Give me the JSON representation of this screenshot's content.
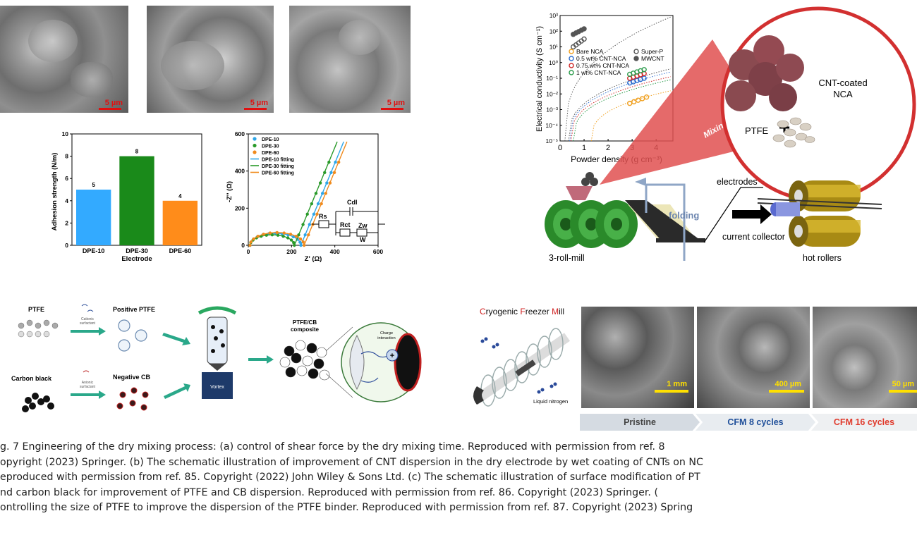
{
  "panel_a": {
    "sem_scale": [
      "5 µm",
      "5 µm",
      "5 µm"
    ],
    "adhesion_chart": {
      "type": "bar",
      "ylabel": "Adhesion strength (N/m)",
      "xlabel": "Electrode",
      "categories": [
        "DPE-10",
        "DPE-30",
        "DPE-60"
      ],
      "values": [
        5,
        8,
        4
      ],
      "data_labels": [
        "5",
        "8",
        "4"
      ],
      "colors": [
        "#33aaff",
        "#1a8a1a",
        "#ff8c1a"
      ],
      "ylim": [
        0,
        10
      ],
      "yticks": [
        "0",
        "2",
        "4",
        "6",
        "8",
        "10"
      ]
    },
    "eis_chart": {
      "type": "scatter",
      "xlabel": "Z' (Ω)",
      "ylabel": "-Z'' (Ω)",
      "xlim": [
        0,
        600
      ],
      "ylim": [
        0,
        600
      ],
      "xticks": [
        "0",
        "200",
        "400",
        "600"
      ],
      "yticks": [
        "0",
        "200",
        "400",
        "600"
      ],
      "legend": [
        "DPE-10",
        "DPE-30",
        "DPE-60",
        "DPE-10 fitting",
        "DPE-30 fitting",
        "DPE-60 fitting"
      ],
      "colors": [
        "#2ea6e8",
        "#2a9a2a",
        "#f08a1c"
      ],
      "circuit_labels": [
        "Rs",
        "Rct",
        "Cdl",
        "Zw",
        "W"
      ]
    }
  },
  "panel_b": {
    "conductivity_chart": {
      "type": "scatter",
      "xlabel": "Powder density (g cm⁻³)",
      "ylabel": "Electrical conductivity (S cm⁻¹)",
      "xticks": [
        "0",
        "1",
        "2",
        "3",
        "4"
      ],
      "yticks": [
        "10⁻⁵",
        "10⁻⁴",
        "10⁻³",
        "10⁻²",
        "10⁻¹",
        "10⁰",
        "10¹",
        "10²",
        "10³"
      ],
      "legend_left": [
        "Bare NCA",
        "0.5 wt% CNT-NCA",
        "0.75 wt% CNT-NCA",
        "1 wt% CNT-NCA"
      ],
      "legend_right": [
        "Super-P",
        "MWCNT"
      ],
      "colors": [
        "#f0a020",
        "#2f6fd0",
        "#d02828",
        "#2a9a4a",
        "#555555",
        "#555555"
      ]
    },
    "labels": {
      "cnt_nca": "CNT-coated\nNCA",
      "plus": "+",
      "ptfe": "PTFE",
      "mixing": "Mixing",
      "electrodes": "electrodes",
      "folding": "folding",
      "current_collector": "current collector",
      "roll_mill": "3-roll-mill",
      "hot_rollers": "hot rollers"
    }
  },
  "panel_c": {
    "ptfe": "PTFE",
    "cationic": "Cationic\nsurfactant",
    "positive_ptfe": "Positive PTFE",
    "carbon_black": "Carbon black",
    "anionic": "Anionic\nsurfactant",
    "negative_cb": "Negative CB",
    "vortex": "Vortex",
    "composite": "PTFE/CB\ncomposite",
    "charge": "Charge\ninteraction",
    "plus": "+"
  },
  "panel_d": {
    "title_parts": [
      "C",
      "ryogenic ",
      "F",
      "reezer ",
      "M",
      "ill"
    ],
    "liquid_nitrogen": "Liquid nitrogen",
    "sem_scale": [
      "1 mm",
      "400 µm",
      "50 µm"
    ],
    "stages": [
      "Pristine",
      "CFM 8 cycles",
      "CFM 16 cycles"
    ],
    "stage_colors": [
      "#9aa6b2",
      "#2f5597",
      "#e03a2c"
    ]
  },
  "caption": {
    "lines": [
      "g. 7  Engineering of the dry mixing process: (a) control of shear force by the dry mixing time. Reproduced with permission from ref. 8",
      "opyright (2023) Springer. (b) The schematic illustration of improvement of CNT dispersion in the dry electrode by wet coating of CNTs on NC",
      "eproduced with permission from ref. 85. Copyright (2022) John Wiley & Sons Ltd. (c) The schematic illustration of surface modification of PT",
      "nd carbon black for improvement of PTFE and CB dispersion. Reproduced with permission from ref. 86. Copyright (2023) Springer. (",
      "ontrolling the size of PTFE to improve the dispersion of the PTFE binder. Reproduced with permission from ref. 87. Copyright (2023) Spring"
    ]
  }
}
